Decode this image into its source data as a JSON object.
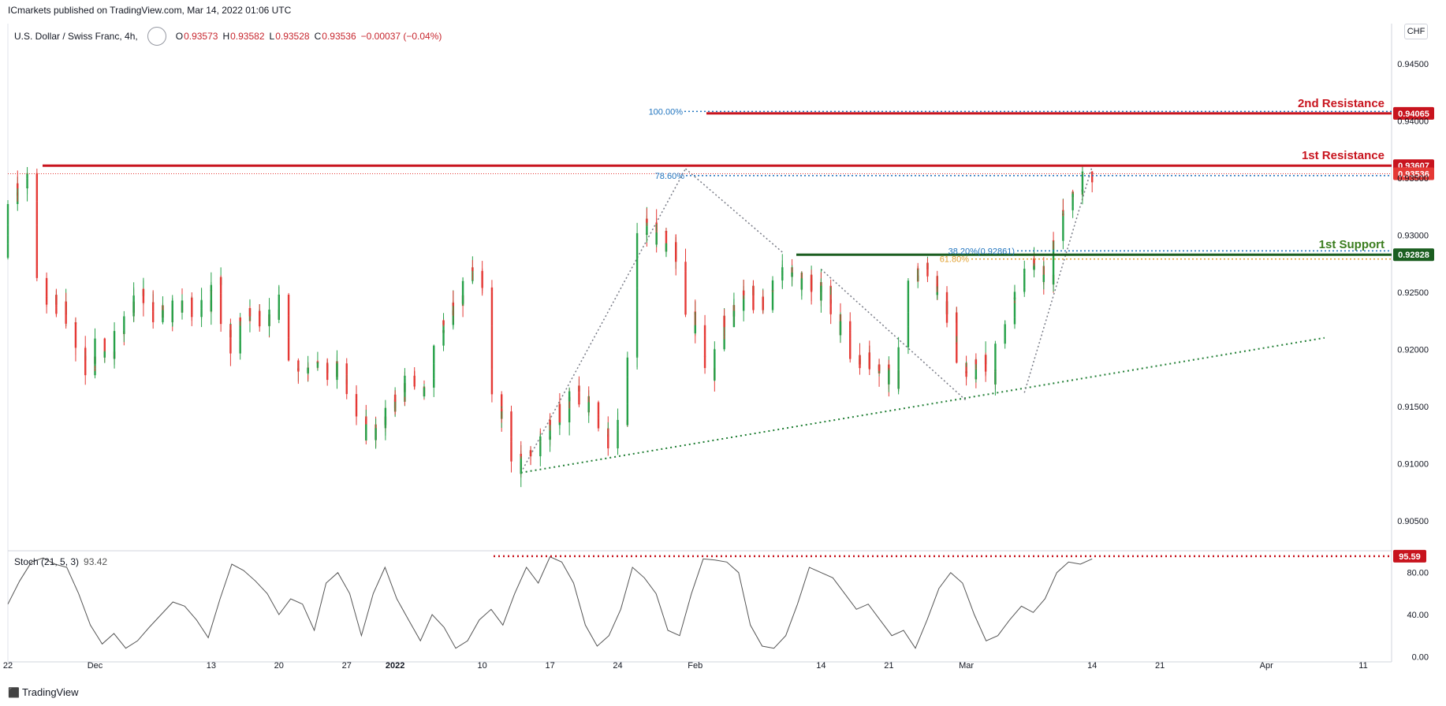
{
  "header": {
    "publisher_text": "ICmarkets published on TradingView.com, Mar 14, 2022 01:06 UTC"
  },
  "legend": {
    "symbol": "U.S. Dollar / Swiss Franc, 4h,",
    "o_label": "O",
    "o_value": "0.93573",
    "h_label": "H",
    "h_value": "0.93582",
    "l_label": "L",
    "l_value": "0.93528",
    "c_label": "C",
    "c_value": "0.93536",
    "change": "−0.00037 (−0.04%)"
  },
  "currency_button": "CHF",
  "stoch": {
    "label": "Stoch (21, 5, 3)",
    "value": "93.42"
  },
  "footer": {
    "logo_text": "TradingView"
  },
  "colors": {
    "up": "#26a148",
    "down": "#e53935",
    "resistance": "#c8141e",
    "support": "#1b5e20",
    "support_label": "#3a7d1e",
    "fib": "#1e73be",
    "fib_orange": "#e0a030",
    "grid": "#e0e3eb",
    "axis_text": "#131722"
  },
  "chart_data": {
    "type": "candlestick",
    "title": "U.S. Dollar / Swiss Franc, 4h",
    "y_axis": {
      "range": [
        0.9025,
        0.9485
      ],
      "ticks": [
        "0.94500",
        "0.94000",
        "0.93500",
        "0.93000",
        "0.92500",
        "0.92000",
        "0.91500",
        "0.91000",
        "0.90500"
      ],
      "tick_values": [
        0.945,
        0.94,
        0.935,
        0.93,
        0.925,
        0.92,
        0.915,
        0.91,
        0.905
      ]
    },
    "x_axis": {
      "ticks": [
        "22",
        "Dec",
        "13",
        "20",
        "27",
        "2022",
        "10",
        "17",
        "24",
        "Feb",
        "14",
        "21",
        "Mar",
        "14",
        "21",
        "Apr",
        "11"
      ],
      "tick_dates": [
        "2021-11-22",
        "2021-12-01",
        "2021-12-13",
        "2021-12-20",
        "2021-12-27",
        "2022-01-01",
        "2022-01-10",
        "2022-01-17",
        "2022-01-24",
        "2022-02-01",
        "2022-02-14",
        "2022-02-21",
        "2022-03-01",
        "2022-03-14",
        "2022-03-21",
        "2022-04-01",
        "2022-04-11"
      ]
    },
    "price_path": [
      [
        "2021-11-22",
        0.928
      ],
      [
        "2021-11-23",
        0.933
      ],
      [
        "2021-11-24",
        0.935
      ],
      [
        "2021-11-25",
        0.9345
      ],
      [
        "2021-11-26",
        0.9245
      ],
      [
        "2021-11-29",
        0.923
      ],
      [
        "2021-11-30",
        0.9195
      ],
      [
        "2021-12-01",
        0.918
      ],
      [
        "2021-12-02",
        0.921
      ],
      [
        "2021-12-03",
        0.9195
      ],
      [
        "2021-12-06",
        0.925
      ],
      [
        "2021-12-07",
        0.924
      ],
      [
        "2021-12-08",
        0.923
      ],
      [
        "2021-12-09",
        0.9225
      ],
      [
        "2021-12-10",
        0.924
      ],
      [
        "2021-12-13",
        0.9235
      ],
      [
        "2021-12-14",
        0.9265
      ],
      [
        "2021-12-15",
        0.922
      ],
      [
        "2021-12-16",
        0.92
      ],
      [
        "2021-12-17",
        0.9235
      ],
      [
        "2021-12-20",
        0.9225
      ],
      [
        "2021-12-21",
        0.9245
      ],
      [
        "2021-12-22",
        0.9195
      ],
      [
        "2021-12-23",
        0.918
      ],
      [
        "2021-12-24",
        0.9185
      ],
      [
        "2021-12-27",
        0.918
      ],
      [
        "2021-12-28",
        0.9165
      ],
      [
        "2021-12-29",
        0.914
      ],
      [
        "2021-12-30",
        0.9125
      ],
      [
        "2021-12-31",
        0.913
      ],
      [
        "2022-01-03",
        0.9175
      ],
      [
        "2022-01-04",
        0.916
      ],
      [
        "2022-01-05",
        0.9175
      ],
      [
        "2022-01-06",
        0.921
      ],
      [
        "2022-01-07",
        0.9225
      ],
      [
        "2022-01-10",
        0.927
      ],
      [
        "2022-01-11",
        0.926
      ],
      [
        "2022-01-12",
        0.915
      ],
      [
        "2022-01-13",
        0.9135
      ],
      [
        "2022-01-14",
        0.9095
      ],
      [
        "2022-01-17",
        0.9125
      ],
      [
        "2022-01-18",
        0.914
      ],
      [
        "2022-01-19",
        0.9145
      ],
      [
        "2022-01-20",
        0.9165
      ],
      [
        "2022-01-21",
        0.9155
      ],
      [
        "2022-01-24",
        0.912
      ],
      [
        "2022-01-25",
        0.914
      ],
      [
        "2022-01-26",
        0.92
      ],
      [
        "2022-01-27",
        0.931
      ],
      [
        "2022-01-28",
        0.9305
      ],
      [
        "2022-01-31",
        0.928
      ],
      [
        "2022-02-01",
        0.923
      ],
      [
        "2022-02-02",
        0.921
      ],
      [
        "2022-02-03",
        0.918
      ],
      [
        "2022-02-04",
        0.9215
      ],
      [
        "2022-02-07",
        0.925
      ],
      [
        "2022-02-08",
        0.924
      ],
      [
        "2022-02-09",
        0.924
      ],
      [
        "2022-02-10",
        0.927
      ],
      [
        "2022-02-11",
        0.9265
      ],
      [
        "2022-02-14",
        0.9255
      ],
      [
        "2022-02-15",
        0.925
      ],
      [
        "2022-02-16",
        0.9225
      ],
      [
        "2022-02-17",
        0.9215
      ],
      [
        "2022-02-18",
        0.9195
      ],
      [
        "2022-02-21",
        0.9185
      ],
      [
        "2022-02-22",
        0.917
      ],
      [
        "2022-02-23",
        0.92
      ],
      [
        "2022-02-24",
        0.9255
      ],
      [
        "2022-02-25",
        0.9275
      ],
      [
        "2022-02-28",
        0.923
      ],
      [
        "2022-03-01",
        0.9185
      ],
      [
        "2022-03-02",
        0.918
      ],
      [
        "2022-03-03",
        0.919
      ],
      [
        "2022-03-04",
        0.9175
      ],
      [
        "2022-03-07",
        0.925
      ],
      [
        "2022-03-08",
        0.928
      ],
      [
        "2022-03-09",
        0.927
      ],
      [
        "2022-03-10",
        0.926
      ],
      [
        "2022-03-11",
        0.931
      ],
      [
        "2022-03-14",
        0.9354
      ]
    ],
    "levels": [
      {
        "name": "2nd Resistance",
        "value": 0.94065,
        "label": "0.94065"
      },
      {
        "name": "1st Resistance",
        "value": 0.93607,
        "label": "0.93607"
      },
      {
        "name": "1st Support",
        "value": 0.92828,
        "label": "0.92828"
      }
    ],
    "last_price": {
      "value": 0.93536,
      "label": "0.93536"
    },
    "fib_labels": {
      "f100": "100.00%",
      "f786": "78.60%",
      "f382": "38.20%(0.92861)",
      "f618": "61.80%"
    },
    "stochastic": {
      "ticks": [
        "80.00",
        "40.00",
        "0.00"
      ],
      "tick_values": [
        80,
        40,
        0
      ],
      "range": [
        -5,
        100
      ],
      "level": {
        "value": 95.59,
        "label": "95.59"
      },
      "values": [
        50,
        72,
        90,
        94,
        88,
        85,
        60,
        30,
        12,
        22,
        8,
        15,
        28,
        40,
        52,
        48,
        35,
        18,
        55,
        88,
        82,
        72,
        60,
        40,
        55,
        50,
        25,
        70,
        80,
        60,
        20,
        60,
        85,
        55,
        35,
        15,
        40,
        28,
        8,
        15,
        35,
        45,
        30,
        60,
        85,
        70,
        95,
        90,
        70,
        30,
        10,
        20,
        45,
        85,
        75,
        60,
        25,
        20,
        60,
        93,
        92,
        90,
        80,
        30,
        10,
        8,
        20,
        50,
        85,
        80,
        75,
        60,
        45,
        50,
        35,
        20,
        25,
        8,
        35,
        65,
        80,
        70,
        40,
        15,
        20,
        35,
        48,
        42,
        55,
        80,
        90,
        88,
        93
      ]
    }
  }
}
